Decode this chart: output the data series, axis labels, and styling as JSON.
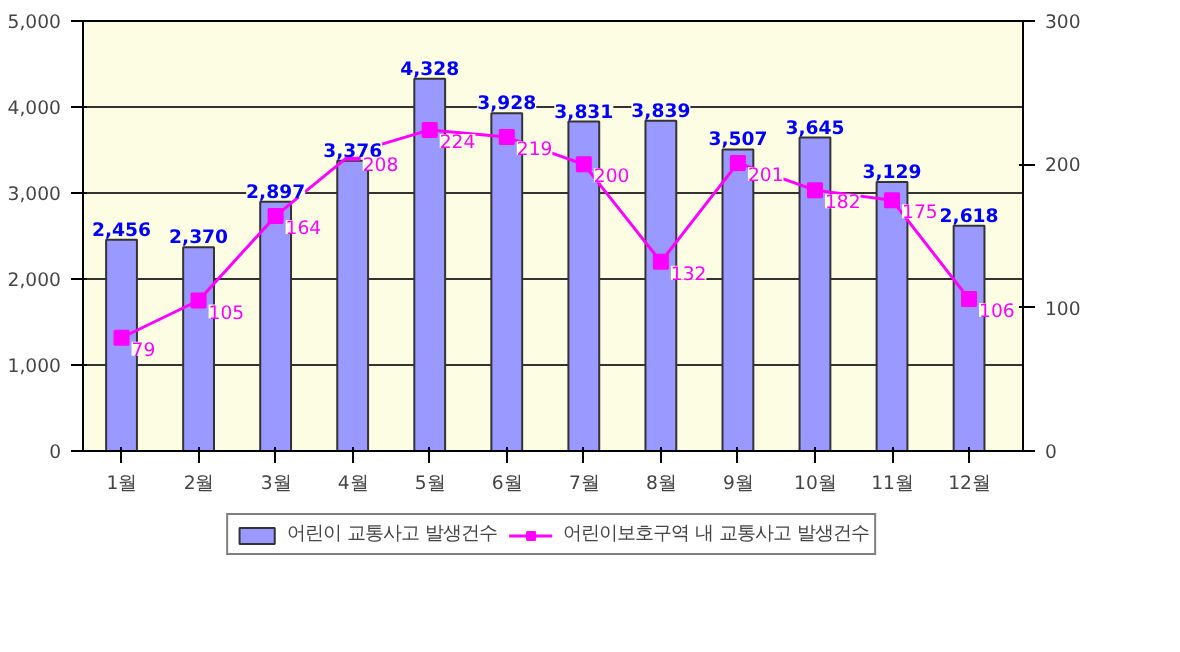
{
  "chart_data": {
    "type": "bar",
    "categories": [
      "1월",
      "2월",
      "3월",
      "4월",
      "5월",
      "6월",
      "7월",
      "8월",
      "9월",
      "10월",
      "11월",
      "12월"
    ],
    "series": [
      {
        "name": "어린이 교통사고 발생건수",
        "color": "#9999ff",
        "values": [
          2456,
          2370,
          2897,
          3376,
          4328,
          3928,
          3831,
          3839,
          3507,
          3645,
          3129,
          2618
        ],
        "value_labels": [
          "2,456",
          "2,370",
          "2,897",
          "3,376",
          "4,328",
          "3,928",
          "3,831",
          "3,839",
          "3,507",
          "3,645",
          "3,129",
          "2,618"
        ]
      },
      {
        "name": "어린이보호구역 내 교통사고 발생건수",
        "type": "line",
        "axis": "y2",
        "color": "#ff00ff",
        "values": [
          79,
          105,
          164,
          208,
          224,
          219,
          200,
          132,
          201,
          182,
          175,
          106
        ]
      }
    ],
    "ylim": [
      0,
      5000
    ],
    "yticks": [
      {
        "value": 0,
        "label": "0"
      },
      {
        "value": 1000,
        "label": "1,000"
      },
      {
        "value": 2000,
        "label": "2,000"
      },
      {
        "value": 3000,
        "label": "3,000"
      },
      {
        "value": 4000,
        "label": "4,000"
      },
      {
        "value": 5000,
        "label": "5,000"
      }
    ],
    "y2lim": [
      0,
      300
    ],
    "y2ticks": [
      0,
      100,
      200,
      300
    ],
    "data_labels": true,
    "grid": "y",
    "legend": "bottom",
    "marker": "square",
    "line_style": "solid"
  }
}
